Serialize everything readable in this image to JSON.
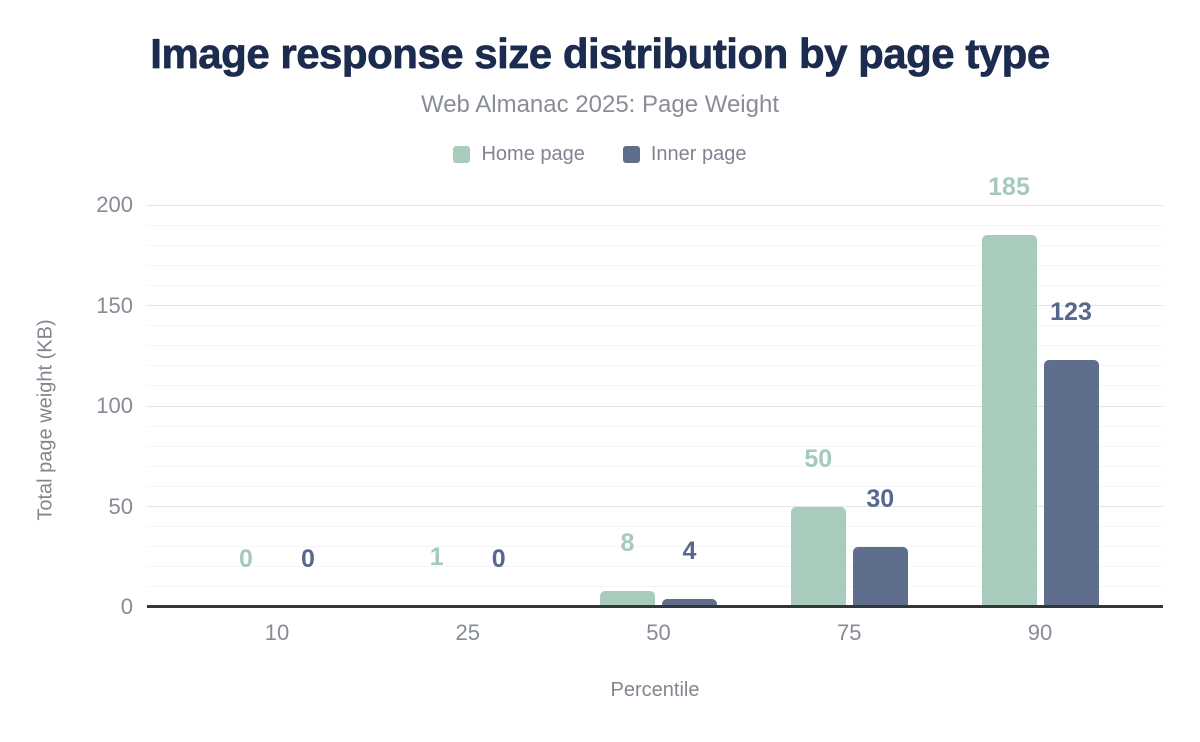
{
  "title": "Image response size distribution by page type",
  "subtitle": "Web Almanac 2025: Page Weight",
  "legend": {
    "items": [
      {
        "label": "Home page",
        "color": "#a8cbbc"
      },
      {
        "label": "Inner page",
        "color": "#5f6e8c"
      }
    ]
  },
  "colors": {
    "title": "#1b2c4e",
    "subtitle": "#898d97",
    "axis_text": "#868b94",
    "axis_line": "#32373e",
    "major_grid": "#e3e5e9",
    "minor_grid": "#f4f5f7",
    "home_bar": "#a8cbbc",
    "inner_bar": "#5f6e8c",
    "home_label": "#a5cab9",
    "inner_label": "#56688d"
  },
  "chart_data": {
    "type": "bar",
    "title": "Image response size distribution by page type",
    "subtitle": "Web Almanac 2025: Page Weight",
    "categories": [
      "10",
      "25",
      "50",
      "75",
      "90"
    ],
    "series": [
      {
        "name": "Home page",
        "color": "#a8cbbc",
        "label_color": "#a5cab9",
        "values": [
          0,
          1,
          8,
          50,
          185
        ]
      },
      {
        "name": "Inner page",
        "color": "#5f6e8c",
        "label_color": "#56688d",
        "values": [
          0,
          0,
          4,
          30,
          123
        ]
      }
    ],
    "xlabel": "Percentile",
    "ylabel": "Total page weight (KB)",
    "ylim": [
      0,
      200
    ],
    "yticks": [
      0,
      50,
      100,
      150,
      200
    ],
    "minor_grid_step": 10,
    "grid": true,
    "legend_position": "top",
    "data_labels": true
  }
}
